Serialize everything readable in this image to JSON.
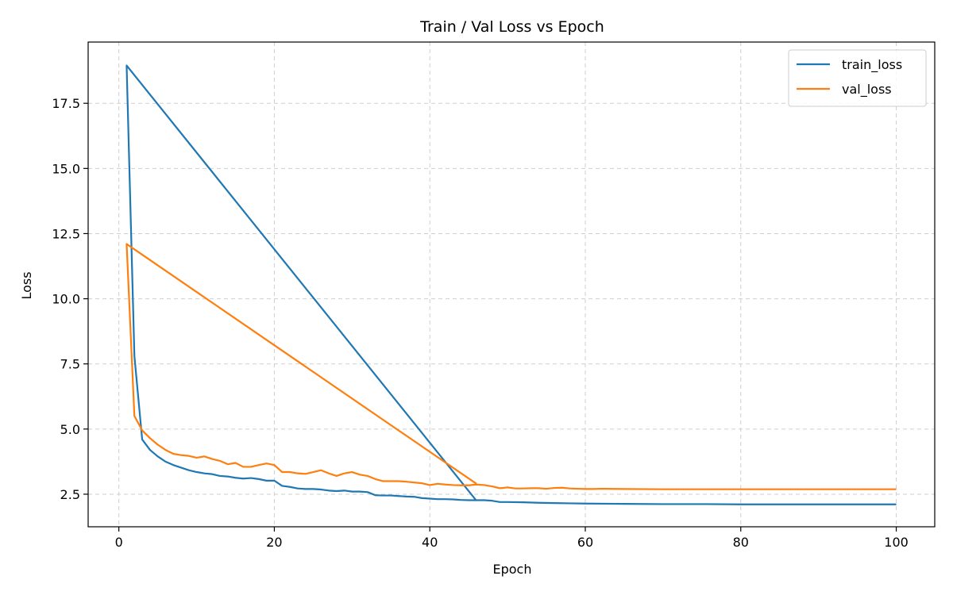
{
  "chart_data": {
    "type": "line",
    "title": "Train / Val Loss vs Epoch",
    "xlabel": "Epoch",
    "ylabel": "Loss",
    "xlim": [
      -3.95,
      104.95
    ],
    "ylim": [
      1.25,
      19.85
    ],
    "xticks": [
      0,
      20,
      40,
      60,
      80,
      100
    ],
    "yticks": [
      2.5,
      5.0,
      7.5,
      10.0,
      12.5,
      15.0,
      17.5
    ],
    "xtick_labels": [
      "0",
      "20",
      "40",
      "60",
      "80",
      "100"
    ],
    "ytick_labels": [
      "2.5",
      "5.0",
      "7.5",
      "10.0",
      "12.5",
      "15.0",
      "17.5"
    ],
    "grid": true,
    "legend_position": "top-right",
    "series": [
      {
        "name": "train_loss",
        "color": "#1f77b4",
        "x": [
          46,
          1,
          2,
          3,
          4,
          5,
          6,
          7,
          8,
          9,
          10,
          11,
          12,
          13,
          14,
          15,
          16,
          17,
          18,
          19,
          20,
          21,
          22,
          23,
          24,
          25,
          26,
          27,
          28,
          29,
          30,
          31,
          32,
          33,
          34,
          35,
          36,
          37,
          38,
          39,
          40,
          41,
          42,
          43,
          44,
          45,
          46,
          47,
          48,
          49,
          50,
          52,
          54,
          56,
          58,
          60,
          65,
          70,
          75,
          80,
          85,
          90,
          95,
          100
        ],
        "y": [
          2.25,
          18.95,
          7.8,
          4.6,
          4.2,
          3.95,
          3.75,
          3.62,
          3.52,
          3.42,
          3.35,
          3.3,
          3.27,
          3.2,
          3.18,
          3.13,
          3.1,
          3.12,
          3.08,
          3.02,
          3.02,
          2.82,
          2.78,
          2.72,
          2.7,
          2.7,
          2.68,
          2.64,
          2.62,
          2.64,
          2.6,
          2.6,
          2.58,
          2.46,
          2.45,
          2.45,
          2.43,
          2.41,
          2.4,
          2.35,
          2.33,
          2.31,
          2.31,
          2.3,
          2.28,
          2.27,
          2.27,
          2.27,
          2.25,
          2.2,
          2.2,
          2.19,
          2.17,
          2.16,
          2.15,
          2.14,
          2.13,
          2.12,
          2.12,
          2.11,
          2.11,
          2.11,
          2.11,
          2.11
        ]
      },
      {
        "name": "val_loss",
        "color": "#ff7f0e",
        "x": [
          46,
          1,
          2,
          3,
          4,
          5,
          6,
          7,
          8,
          9,
          10,
          11,
          12,
          13,
          14,
          15,
          16,
          17,
          18,
          19,
          20,
          21,
          22,
          23,
          24,
          25,
          26,
          27,
          28,
          29,
          30,
          31,
          32,
          33,
          34,
          35,
          36,
          37,
          38,
          39,
          40,
          41,
          42,
          43,
          44,
          45,
          46,
          47,
          48,
          49,
          50,
          51,
          52,
          53,
          54,
          55,
          56,
          57,
          58,
          59,
          60,
          61,
          62,
          65,
          70,
          75,
          80,
          85,
          90,
          95,
          100
        ],
        "y": [
          2.9,
          12.1,
          5.5,
          4.95,
          4.65,
          4.4,
          4.2,
          4.05,
          4.0,
          3.97,
          3.9,
          3.95,
          3.85,
          3.78,
          3.65,
          3.7,
          3.55,
          3.55,
          3.62,
          3.68,
          3.62,
          3.35,
          3.35,
          3.3,
          3.28,
          3.35,
          3.42,
          3.3,
          3.2,
          3.3,
          3.35,
          3.25,
          3.2,
          3.08,
          3.0,
          3.0,
          3.0,
          2.98,
          2.95,
          2.92,
          2.85,
          2.9,
          2.87,
          2.85,
          2.84,
          2.84,
          2.87,
          2.85,
          2.8,
          2.73,
          2.76,
          2.72,
          2.72,
          2.73,
          2.73,
          2.71,
          2.74,
          2.75,
          2.72,
          2.71,
          2.7,
          2.7,
          2.71,
          2.7,
          2.69,
          2.69,
          2.69,
          2.69,
          2.69,
          2.69,
          2.69
        ]
      }
    ]
  }
}
